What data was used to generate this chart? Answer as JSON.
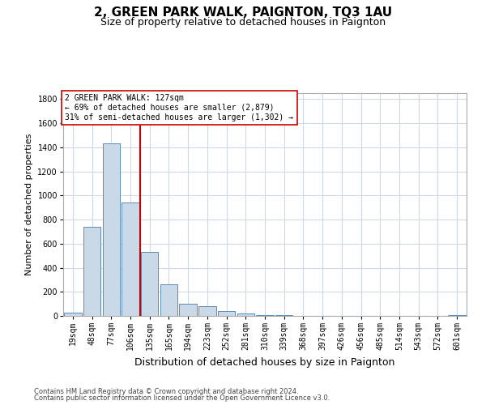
{
  "title": "2, GREEN PARK WALK, PAIGNTON, TQ3 1AU",
  "subtitle": "Size of property relative to detached houses in Paignton",
  "xlabel": "Distribution of detached houses by size in Paignton",
  "ylabel": "Number of detached properties",
  "footer1": "Contains HM Land Registry data © Crown copyright and database right 2024.",
  "footer2": "Contains public sector information licensed under the Open Government Licence v3.0.",
  "categories": [
    "19sqm",
    "48sqm",
    "77sqm",
    "106sqm",
    "135sqm",
    "165sqm",
    "194sqm",
    "223sqm",
    "252sqm",
    "281sqm",
    "310sqm",
    "339sqm",
    "368sqm",
    "397sqm",
    "426sqm",
    "456sqm",
    "485sqm",
    "514sqm",
    "543sqm",
    "572sqm",
    "601sqm"
  ],
  "values": [
    30,
    740,
    1430,
    940,
    530,
    265,
    100,
    82,
    40,
    22,
    10,
    5,
    3,
    2,
    2,
    0,
    0,
    0,
    0,
    0,
    5
  ],
  "bar_color": "#c9d9e8",
  "bar_edge_color": "#5b8db8",
  "vline_color": "#cc0000",
  "annotation_text": "2 GREEN PARK WALK: 127sqm\n← 69% of detached houses are smaller (2,879)\n31% of semi-detached houses are larger (1,302) →",
  "annotation_box_color": "#ffffff",
  "annotation_box_edge": "#cc0000",
  "ylim": [
    0,
    1850
  ],
  "yticks": [
    0,
    200,
    400,
    600,
    800,
    1000,
    1200,
    1400,
    1600,
    1800
  ],
  "grid_color": "#d0d8e8",
  "title_fontsize": 11,
  "subtitle_fontsize": 9,
  "tick_fontsize": 7,
  "ylabel_fontsize": 8,
  "xlabel_fontsize": 9,
  "footer_fontsize": 6,
  "annot_fontsize": 7
}
